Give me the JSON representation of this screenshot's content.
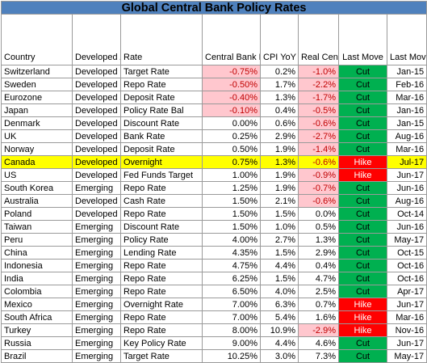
{
  "title": "Global Central Bank Policy Rates",
  "headers": {
    "country": "Country",
    "type": "Developed\n/Emerging",
    "rate": "Rate",
    "cb_rate": "Central Bank\nRate (Today)",
    "cpi": "CPI YoY",
    "real": "Real\nCentral\nBank\nRate",
    "last_move": "Last Move",
    "last_date": "Last\nMove\nDate"
  },
  "highlight_country": "Canada",
  "colors": {
    "title_bg": "#4f81bd",
    "negative_bg": "#ffc7ce",
    "negative_text": "#c00000",
    "cut_bg": "#00b050",
    "hike_bg": "#ff0000",
    "highlight_bg": "#ffff00"
  },
  "rows": [
    {
      "country": "Switzerland",
      "type": "Developed",
      "rate": "Target Rate",
      "cb_rate": "-0.75%",
      "cpi": "0.2%",
      "real": "-1.0%",
      "move": "Cut",
      "date": "Jan-15"
    },
    {
      "country": "Sweden",
      "type": "Developed",
      "rate": "Repo Rate",
      "cb_rate": "-0.50%",
      "cpi": "1.7%",
      "real": "-2.2%",
      "move": "Cut",
      "date": "Feb-16"
    },
    {
      "country": "Eurozone",
      "type": "Developed",
      "rate": "Deposit Rate",
      "cb_rate": "-0.40%",
      "cpi": "1.3%",
      "real": "-1.7%",
      "move": "Cut",
      "date": "Mar-16"
    },
    {
      "country": "Japan",
      "type": "Developed",
      "rate": "Policy Rate Bal",
      "cb_rate": "-0.10%",
      "cpi": "0.4%",
      "real": "-0.5%",
      "move": "Cut",
      "date": "Jan-16"
    },
    {
      "country": "Denmark",
      "type": "Developed",
      "rate": "Discount Rate",
      "cb_rate": "0.00%",
      "cpi": "0.6%",
      "real": "-0.6%",
      "move": "Cut",
      "date": "Jan-15"
    },
    {
      "country": "UK",
      "type": "Developed",
      "rate": "Bank Rate",
      "cb_rate": "0.25%",
      "cpi": "2.9%",
      "real": "-2.7%",
      "move": "Cut",
      "date": "Aug-16"
    },
    {
      "country": "Norway",
      "type": "Developed",
      "rate": "Deposit Rate",
      "cb_rate": "0.50%",
      "cpi": "1.9%",
      "real": "-1.4%",
      "move": "Cut",
      "date": "Mar-16"
    },
    {
      "country": "Canada",
      "type": "Developed",
      "rate": "Overnight",
      "cb_rate": "0.75%",
      "cpi": "1.3%",
      "real": "-0.6%",
      "move": "Hike",
      "date": "Jul-17"
    },
    {
      "country": "US",
      "type": "Developed",
      "rate": "Fed Funds Target",
      "cb_rate": "1.00%",
      "cpi": "1.9%",
      "real": "-0.9%",
      "move": "Hike",
      "date": "Jun-17"
    },
    {
      "country": "South Korea",
      "type": "Emerging",
      "rate": "Repo Rate",
      "cb_rate": "1.25%",
      "cpi": "1.9%",
      "real": "-0.7%",
      "move": "Cut",
      "date": "Jun-16"
    },
    {
      "country": "Australia",
      "type": "Developed",
      "rate": "Cash Rate",
      "cb_rate": "1.50%",
      "cpi": "2.1%",
      "real": "-0.6%",
      "move": "Cut",
      "date": "Aug-16"
    },
    {
      "country": "Poland",
      "type": "Developed",
      "rate": "Repo Rate",
      "cb_rate": "1.50%",
      "cpi": "1.5%",
      "real": "0.0%",
      "move": "Cut",
      "date": "Oct-14"
    },
    {
      "country": "Taiwan",
      "type": "Emerging",
      "rate": "Discount Rate",
      "cb_rate": "1.50%",
      "cpi": "1.0%",
      "real": "0.5%",
      "move": "Cut",
      "date": "Jun-16"
    },
    {
      "country": "Peru",
      "type": "Emerging",
      "rate": "Policy Rate",
      "cb_rate": "4.00%",
      "cpi": "2.7%",
      "real": "1.3%",
      "move": "Cut",
      "date": "May-17"
    },
    {
      "country": "China",
      "type": "Emerging",
      "rate": "Lending Rate",
      "cb_rate": "4.35%",
      "cpi": "1.5%",
      "real": "2.9%",
      "move": "Cut",
      "date": "Oct-15"
    },
    {
      "country": "Indonesia",
      "type": "Emerging",
      "rate": "Repo Rate",
      "cb_rate": "4.75%",
      "cpi": "4.4%",
      "real": "0.4%",
      "move": "Cut",
      "date": "Oct-16"
    },
    {
      "country": "India",
      "type": "Emerging",
      "rate": "Repo Rate",
      "cb_rate": "6.25%",
      "cpi": "1.5%",
      "real": "4.7%",
      "move": "Cut",
      "date": "Oct-16"
    },
    {
      "country": "Colombia",
      "type": "Emerging",
      "rate": "Repo Rate",
      "cb_rate": "6.50%",
      "cpi": "4.0%",
      "real": "2.5%",
      "move": "Cut",
      "date": "Apr-17"
    },
    {
      "country": "Mexico",
      "type": "Emerging",
      "rate": "Overnight Rate",
      "cb_rate": "7.00%",
      "cpi": "6.3%",
      "real": "0.7%",
      "move": "Hike",
      "date": "Jun-17"
    },
    {
      "country": "South Africa",
      "type": "Emerging",
      "rate": "Repo Rate",
      "cb_rate": "7.00%",
      "cpi": "5.4%",
      "real": "1.6%",
      "move": "Hike",
      "date": "Mar-16"
    },
    {
      "country": "Turkey",
      "type": "Emerging",
      "rate": "Repo Rate",
      "cb_rate": "8.00%",
      "cpi": "10.9%",
      "real": "-2.9%",
      "move": "Hike",
      "date": "Nov-16"
    },
    {
      "country": "Russia",
      "type": "Emerging",
      "rate": "Key Policy Rate",
      "cb_rate": "9.00%",
      "cpi": "4.4%",
      "real": "4.6%",
      "move": "Cut",
      "date": "Jun-17"
    },
    {
      "country": "Brazil",
      "type": "Emerging",
      "rate": "Target Rate",
      "cb_rate": "10.25%",
      "cpi": "3.0%",
      "real": "7.3%",
      "move": "Cut",
      "date": "May-17"
    }
  ]
}
